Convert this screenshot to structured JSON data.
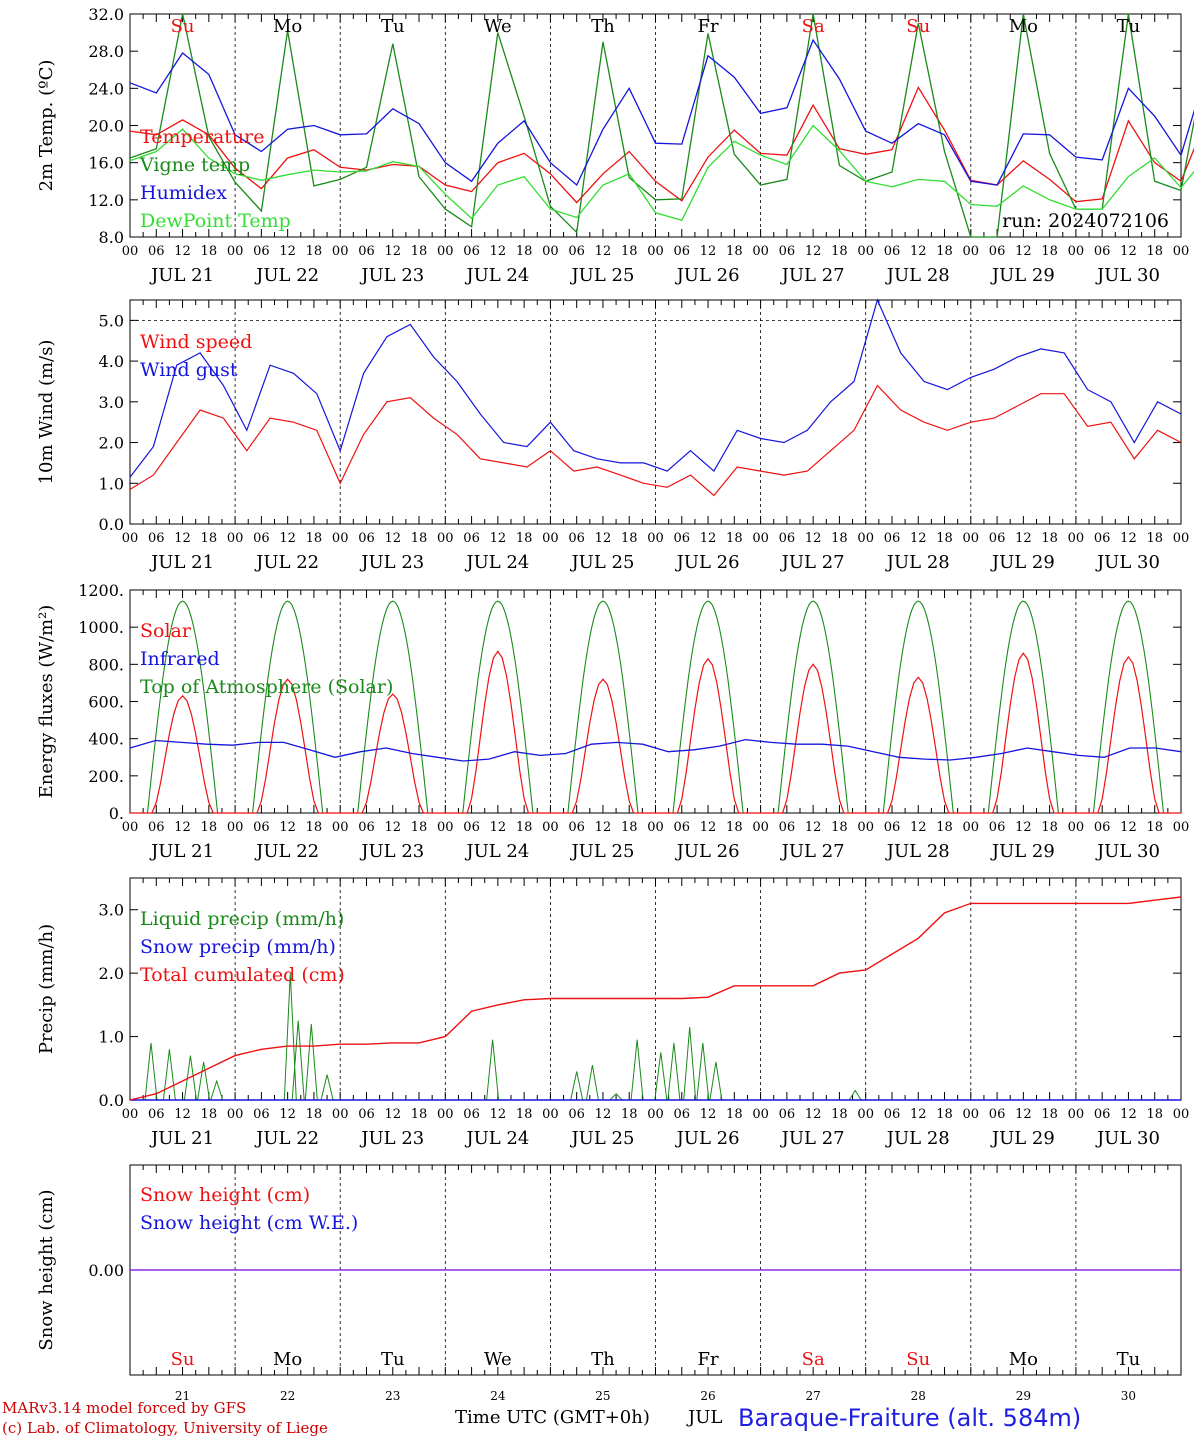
{
  "colors": {
    "red": "#ee1111",
    "dgreen": "#1a8a1a",
    "blue": "#1515dd",
    "lgreen": "#33dd33",
    "purple": "#8a2be2",
    "black": "#000000"
  },
  "days": {
    "top_labels": [
      "Su",
      "Mo",
      "Tu",
      "We",
      "Th",
      "Fr",
      "Sa",
      "Su",
      "Mo",
      "Tu"
    ],
    "weekend_flags": [
      true,
      false,
      false,
      false,
      false,
      false,
      true,
      true,
      false,
      false
    ],
    "dates": [
      "JUL 21",
      "JUL 22",
      "JUL 23",
      "JUL 24",
      "JUL 25",
      "JUL 26",
      "JUL 27",
      "JUL 28",
      "JUL 29",
      "JUL 30"
    ],
    "hour_ticks": [
      "00",
      "06",
      "12",
      "18"
    ],
    "final_hour_tick": "00",
    "day_numbers": [
      "21",
      "22",
      "23",
      "24",
      "25",
      "26",
      "27",
      "28",
      "29",
      "30"
    ]
  },
  "footer": {
    "model": "MARv3.14 model forced by GFS",
    "copyright": "(c) Lab. of Climatology, University of Liege",
    "time_axis": "Time UTC (GMT+0h)",
    "month": "JUL",
    "station": "Baraque-Fraiture (alt. 584m)"
  },
  "chart_data": [
    {
      "type": "line",
      "ylabel": "2m Temp. (ºC)",
      "ylim": [
        8,
        32
      ],
      "yticks": [
        "8.0",
        "12.0",
        "16.0",
        "20.0",
        "24.0",
        "28.0",
        "32.0"
      ],
      "run_label": "run: 2024072106",
      "legend_placement": "left",
      "x_unit": "hours since 2024-07-21 00 UTC, 6-hourly",
      "series": [
        {
          "name": "Temperature",
          "color": "red",
          "values": [
            19.4,
            19.0,
            20.6,
            19.0,
            15.4,
            13.2,
            16.5,
            17.4,
            15.5,
            15.2,
            15.8,
            15.6,
            13.6,
            12.9,
            16.0,
            17.0,
            14.8,
            11.7,
            14.8,
            17.2,
            14.0,
            11.9,
            16.6,
            19.5,
            17.0,
            16.8,
            22.2,
            17.5,
            16.9,
            17.4,
            24.1,
            19.5,
            14.1,
            13.6,
            16.2,
            14.2,
            11.8,
            12.1,
            20.5,
            16.0,
            14.0,
            21.0,
            19.5,
            16.0
          ]
        },
        {
          "name": "Vigne temp",
          "color": "dgreen",
          "values": [
            16.5,
            17.5,
            32.0,
            18.8,
            13.9,
            10.8,
            30.2,
            13.5,
            14.2,
            15.5,
            28.8,
            14.5,
            11.0,
            9.1,
            30.0,
            21.0,
            11.3,
            8.5,
            29.0,
            14.4,
            12.0,
            12.1,
            29.9,
            16.9,
            13.6,
            14.2,
            32.0,
            15.7,
            14.0,
            15.0,
            31.0,
            17.2,
            8.0,
            8.0,
            32.0,
            17.0,
            11.0,
            11.0,
            32.0,
            14.0,
            13.0,
            28.0,
            20.5,
            13.0
          ]
        },
        {
          "name": "Humidex",
          "color": "blue",
          "values": [
            24.6,
            23.5,
            27.8,
            25.5,
            19.0,
            17.2,
            19.6,
            20.0,
            19.0,
            19.1,
            21.8,
            20.2,
            16.0,
            14.0,
            18.1,
            20.5,
            16.0,
            13.6,
            19.6,
            24.0,
            18.1,
            18.0,
            27.5,
            25.2,
            21.3,
            21.9,
            29.2,
            25.0,
            19.4,
            18.1,
            20.2,
            19.0,
            14.0,
            13.6,
            19.1,
            19.0,
            16.6,
            16.3,
            24.0,
            21.0,
            16.8,
            26.3,
            25.0,
            19.0
          ]
        },
        {
          "name": "DewPoint Temp",
          "color": "lgreen",
          "values": [
            16.2,
            17.2,
            19.6,
            16.5,
            14.8,
            14.1,
            14.7,
            15.2,
            15.0,
            15.1,
            16.1,
            15.6,
            12.6,
            10.0,
            13.6,
            14.5,
            11.0,
            10.1,
            13.6,
            14.8,
            10.6,
            9.8,
            15.5,
            18.3,
            16.8,
            15.8,
            20.0,
            17.3,
            14.0,
            13.4,
            14.2,
            14.0,
            11.5,
            11.3,
            13.5,
            12.0,
            11.0,
            11.0,
            14.5,
            16.5,
            13.3,
            16.8,
            16.0,
            13.5
          ]
        }
      ]
    },
    {
      "type": "line",
      "ylabel": "10m Wind (m/s)",
      "ylim": [
        0,
        5.5
      ],
      "yticks": [
        "0.0",
        "1.0",
        "2.0",
        "3.0",
        "4.0",
        "5.0"
      ],
      "reference_line": 5.0,
      "legend_placement": "left",
      "series": [
        {
          "name": "Wind speed",
          "color": "red",
          "values": [
            0.85,
            1.2,
            2.0,
            2.8,
            2.6,
            1.8,
            2.6,
            2.5,
            2.3,
            1.0,
            2.2,
            3.0,
            3.1,
            2.6,
            2.2,
            1.6,
            1.5,
            1.4,
            1.8,
            1.3,
            1.4,
            1.2,
            1.0,
            0.9,
            1.2,
            0.7,
            1.4,
            1.3,
            1.2,
            1.3,
            1.8,
            2.3,
            3.4,
            2.8,
            2.5,
            2.3,
            2.5,
            2.6,
            2.9,
            3.2,
            3.2,
            2.4,
            2.5,
            1.6,
            2.3,
            2.0
          ]
        },
        {
          "name": "Wind gust",
          "color": "blue",
          "values": [
            1.15,
            1.9,
            3.9,
            4.2,
            3.4,
            2.3,
            3.9,
            3.7,
            3.2,
            1.8,
            3.7,
            4.6,
            4.9,
            4.1,
            3.5,
            2.7,
            2.0,
            1.9,
            2.5,
            1.8,
            1.6,
            1.5,
            1.5,
            1.3,
            1.8,
            1.3,
            2.3,
            2.1,
            2.0,
            2.3,
            3.0,
            3.5,
            5.5,
            4.2,
            3.5,
            3.3,
            3.6,
            3.8,
            4.1,
            4.3,
            4.2,
            3.3,
            3.0,
            2.0,
            3.0,
            2.7
          ]
        }
      ]
    },
    {
      "type": "line",
      "ylabel": "Energy fluxes (W/m²)",
      "ylim": [
        0,
        1200
      ],
      "yticks": [
        "0.",
        "200.",
        "400.",
        "600.",
        "800.",
        "1000.",
        "1200."
      ],
      "legend_placement": "left",
      "series": [
        {
          "name": "Solar",
          "color": "red",
          "peaks": [
            630,
            720,
            640,
            870,
            720,
            830,
            800,
            730,
            860,
            840
          ]
        },
        {
          "name": "Infrared",
          "color": "blue",
          "values": [
            350,
            390,
            380,
            370,
            365,
            380,
            380,
            340,
            300,
            330,
            350,
            320,
            300,
            280,
            290,
            330,
            310,
            320,
            370,
            380,
            370,
            330,
            340,
            360,
            395,
            380,
            370,
            370,
            360,
            330,
            300,
            290,
            285,
            300,
            320,
            350,
            330,
            310,
            300,
            350,
            350,
            330
          ]
        },
        {
          "name": "Top of Atmosphere (Solar)",
          "color": "dgreen",
          "peak": 1140
        }
      ]
    },
    {
      "type": "line",
      "ylabel": "Precip (mm/h)",
      "ylim": [
        0,
        3.5
      ],
      "yticks": [
        "0.0",
        "1.0",
        "2.0",
        "3.0"
      ],
      "legend_placement": "left",
      "series": [
        {
          "name": "Liquid precip (mm/h)",
          "color": "dgreen",
          "events": [
            [
              0.8,
              0.9
            ],
            [
              1.5,
              0.8
            ],
            [
              2.3,
              0.7
            ],
            [
              2.8,
              0.6
            ],
            [
              3.3,
              0.3
            ],
            [
              6.1,
              2.0
            ],
            [
              6.4,
              1.25
            ],
            [
              6.9,
              1.2
            ],
            [
              7.5,
              0.4
            ],
            [
              13.8,
              0.95
            ],
            [
              17.0,
              0.45
            ],
            [
              17.6,
              0.55
            ],
            [
              18.5,
              0.1
            ],
            [
              19.3,
              0.95
            ],
            [
              20.2,
              0.75
            ],
            [
              20.7,
              0.9
            ],
            [
              21.3,
              1.15
            ],
            [
              21.8,
              0.9
            ],
            [
              22.3,
              0.6
            ],
            [
              27.6,
              0.15
            ]
          ]
        },
        {
          "name": "Snow precip (mm/h)",
          "color": "blue",
          "values": [
            0
          ]
        },
        {
          "name": "Total cumulated (cm)",
          "color": "red",
          "x": [
            0,
            1,
            2,
            3,
            4,
            5,
            6,
            7,
            8,
            9,
            10,
            11,
            12,
            13,
            14,
            15,
            16,
            17,
            18,
            19,
            20,
            21,
            22,
            23,
            24,
            25,
            26,
            27,
            28,
            29,
            30,
            31,
            32,
            33,
            34,
            35,
            36,
            37,
            38,
            39,
            40
          ],
          "values": [
            0.0,
            0.1,
            0.3,
            0.5,
            0.7,
            0.8,
            0.85,
            0.85,
            0.88,
            0.88,
            0.9,
            0.9,
            1.0,
            1.4,
            1.5,
            1.58,
            1.6,
            1.6,
            1.6,
            1.6,
            1.6,
            1.6,
            1.62,
            1.8,
            1.8,
            1.8,
            1.8,
            2.0,
            2.05,
            2.3,
            2.55,
            2.95,
            3.1,
            3.1,
            3.1,
            3.1,
            3.1,
            3.1,
            3.1,
            3.15,
            3.2
          ]
        }
      ]
    },
    {
      "type": "line",
      "ylabel": "Snow height (cm)",
      "ylim": [
        -1,
        1
      ],
      "yticks": [
        "0.00"
      ],
      "legend_placement": "left",
      "series": [
        {
          "name": "Snow height (cm)",
          "color": "red",
          "values": [
            0
          ]
        },
        {
          "name": "Snow height (cm W.E.)",
          "color": "blue",
          "values": [
            0
          ]
        }
      ]
    }
  ]
}
